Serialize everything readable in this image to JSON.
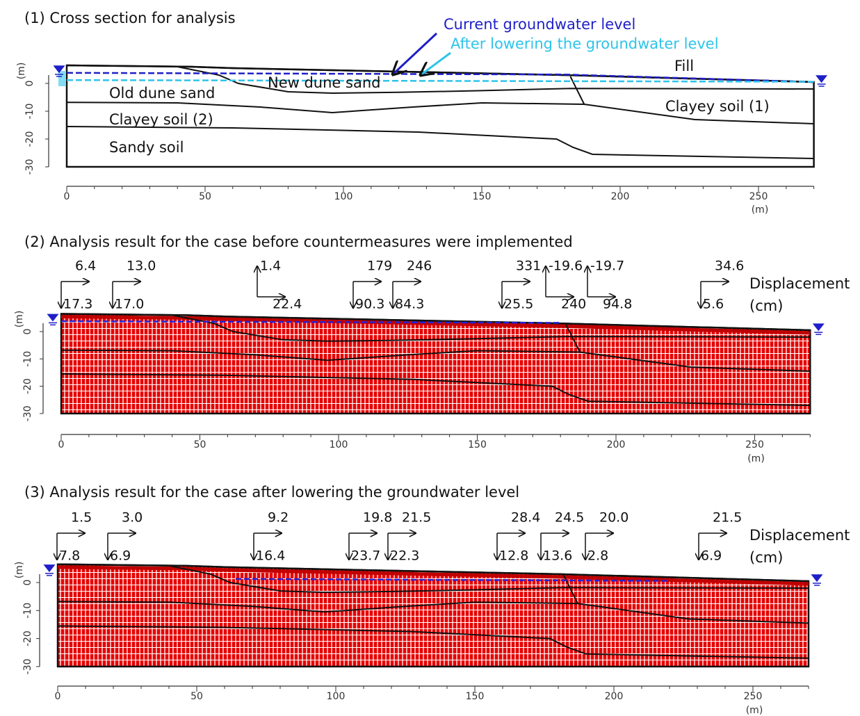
{
  "panels": [
    {
      "title": "(1) Cross section for analysis",
      "x_ticks": [
        0,
        50,
        100,
        150,
        200,
        250
      ],
      "x_unit": "(m)",
      "y_ticks": [
        0,
        -10,
        -20,
        -30
      ],
      "y_unit": "(m)",
      "legend": [
        {
          "label": "Current groundwater level",
          "color": "#1f1fc8"
        },
        {
          "label": "After lowering the groundwater level",
          "color": "#2ec4ea"
        }
      ],
      "layer_labels": [
        "Fill",
        "New dune sand",
        "Old dune sand",
        "Clayey soil (2)",
        "Sandy soil",
        "Clayey soil (1)"
      ]
    },
    {
      "title": "(2) Analysis result for the case before countermeasures were implemented",
      "x_ticks": [
        0,
        50,
        100,
        150,
        200,
        250
      ],
      "x_unit": "(m)",
      "y_ticks": [
        0,
        -10,
        -20,
        -30
      ],
      "y_unit": "(m)",
      "displacement_label": "Displacement",
      "displacement_unit": "(cm)",
      "arrows": [
        {
          "horizontal": "6.4",
          "vertical": "17.3"
        },
        {
          "horizontal": "13.0",
          "vertical": "17.0"
        },
        {
          "horizontal": "22.4",
          "vertical": "1.4"
        },
        {
          "horizontal": "179",
          "vertical": "90.3"
        },
        {
          "horizontal": "246",
          "vertical": "84.3"
        },
        {
          "horizontal": "331",
          "vertical": "25.5"
        },
        {
          "horizontal": "240",
          "vertical": "-19.6"
        },
        {
          "horizontal": "94.8",
          "vertical": "-19.7"
        },
        {
          "horizontal": "34.6",
          "vertical": "5.6"
        }
      ]
    },
    {
      "title": "(3) Analysis result for the case after lowering the groundwater level",
      "x_ticks": [
        0,
        50,
        100,
        150,
        200,
        250
      ],
      "x_unit": "(m)",
      "y_ticks": [
        0,
        -10,
        -20,
        -30
      ],
      "y_unit": "(m)",
      "displacement_label": "Displacement",
      "displacement_unit": "(cm)",
      "arrows": [
        {
          "horizontal": "1.5",
          "vertical": "7.8"
        },
        {
          "horizontal": "3.0",
          "vertical": "6.9"
        },
        {
          "horizontal": "9.2",
          "vertical": "16.4"
        },
        {
          "horizontal": "19.8",
          "vertical": "23.7"
        },
        {
          "horizontal": "21.5",
          "vertical": "22.3"
        },
        {
          "horizontal": "28.4",
          "vertical": "12.8"
        },
        {
          "horizontal": "24.5",
          "vertical": "13.6"
        },
        {
          "horizontal": "20.0",
          "vertical": "2.8"
        },
        {
          "horizontal": "21.5",
          "vertical": "6.9"
        }
      ]
    }
  ]
}
